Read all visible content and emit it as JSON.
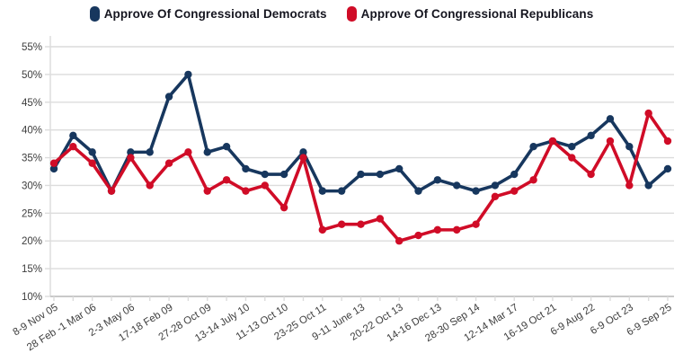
{
  "colors": {
    "background": "#ffffff",
    "grid": "#dcdcdc",
    "axis": "#c9c9c9",
    "tick_label": "#3d3d3d",
    "legend_text": "#15151f",
    "democrats_blue": "#17375e",
    "republicans_red": "#d00c27"
  },
  "chart_data": {
    "type": "line",
    "title": "",
    "xlabel": "",
    "ylabel": "",
    "ylim": [
      10,
      55
    ],
    "yticks": [
      10,
      15,
      20,
      25,
      30,
      35,
      40,
      45,
      50,
      55
    ],
    "ytick_suffix": "%",
    "grid": "horizontal",
    "legend_position": "top",
    "x_label_rotation": -32,
    "categories": [
      "8-9 Nov 05",
      "",
      "28 Feb -1 Mar 06",
      "",
      "2-3 May 06",
      "",
      "17-18 Feb 09",
      "",
      "27-28 Oct 09",
      "",
      "13-14 July 10",
      "",
      "11-13 Oct 10",
      "",
      "23-25 Oct 11",
      "",
      "9-11 June 13",
      "",
      "20-22 Oct 13",
      "",
      "14-16 Dec 13",
      "",
      "28-30 Sep 14",
      "",
      "12-14 Mar 17",
      "",
      "16-19 Oct 21",
      "",
      "6-9 Aug 22",
      "",
      "6-9 Oct 23",
      "",
      "6-9 Sep 25"
    ],
    "series": [
      {
        "id": "democrats",
        "name": "Approve Of Congressional Democrats",
        "color": "#17375e",
        "values": [
          33,
          39,
          36,
          29,
          36,
          36,
          46,
          50,
          36,
          37,
          33,
          32,
          32,
          36,
          29,
          29,
          32,
          32,
          33,
          29,
          31,
          30,
          29,
          30,
          32,
          37,
          38,
          37,
          39,
          42,
          37,
          30,
          33
        ]
      },
      {
        "id": "republicans",
        "name": "Approve Of Congressional Republicans",
        "color": "#d00c27",
        "values": [
          34,
          37,
          34,
          29,
          35,
          30,
          34,
          36,
          29,
          31,
          29,
          30,
          26,
          35,
          22,
          23,
          23,
          24,
          20,
          21,
          22,
          22,
          23,
          28,
          29,
          31,
          38,
          35,
          32,
          38,
          30,
          43,
          38
        ]
      }
    ]
  }
}
